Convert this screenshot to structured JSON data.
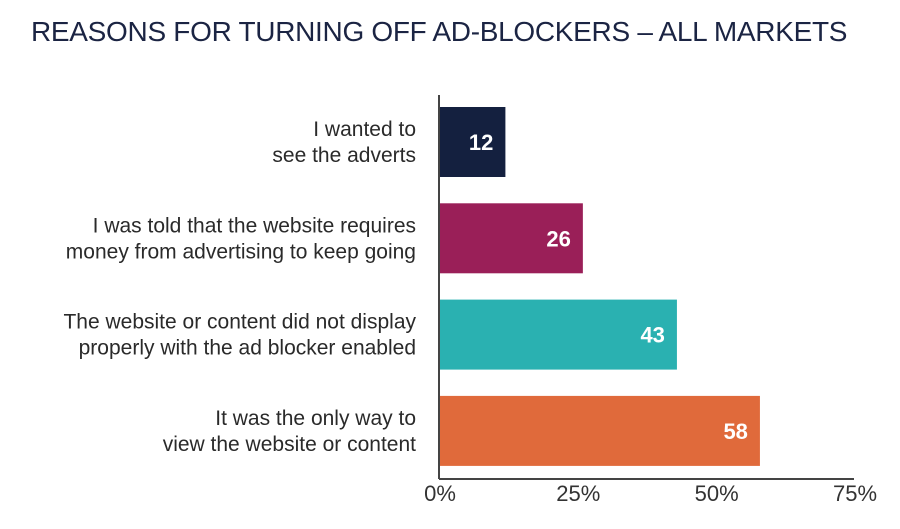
{
  "chart_data": {
    "type": "bar",
    "orientation": "horizontal",
    "title": "REASONS FOR TURNING OFF AD-BLOCKERS – ALL MARKETS",
    "categories": [
      [
        "I wanted to",
        "see the adverts"
      ],
      [
        "I was told that the website requires",
        "money from advertising to keep going"
      ],
      [
        "The website or content did not display",
        "properly with the ad blocker enabled"
      ],
      [
        "It was the only way to",
        "view the website or content"
      ]
    ],
    "values": [
      12,
      26,
      43,
      58
    ],
    "value_labels": [
      "12",
      "26",
      "43",
      "58"
    ],
    "colors": [
      "#14203f",
      "#9a1f58",
      "#2ab1b1",
      "#e06a3b"
    ],
    "xlim": [
      0,
      75
    ],
    "xticks": [
      0,
      25,
      50,
      75
    ],
    "xtick_labels": [
      "0%",
      "25%",
      "50%",
      "75%"
    ],
    "xlabel": "",
    "ylabel": "",
    "grid": false
  }
}
